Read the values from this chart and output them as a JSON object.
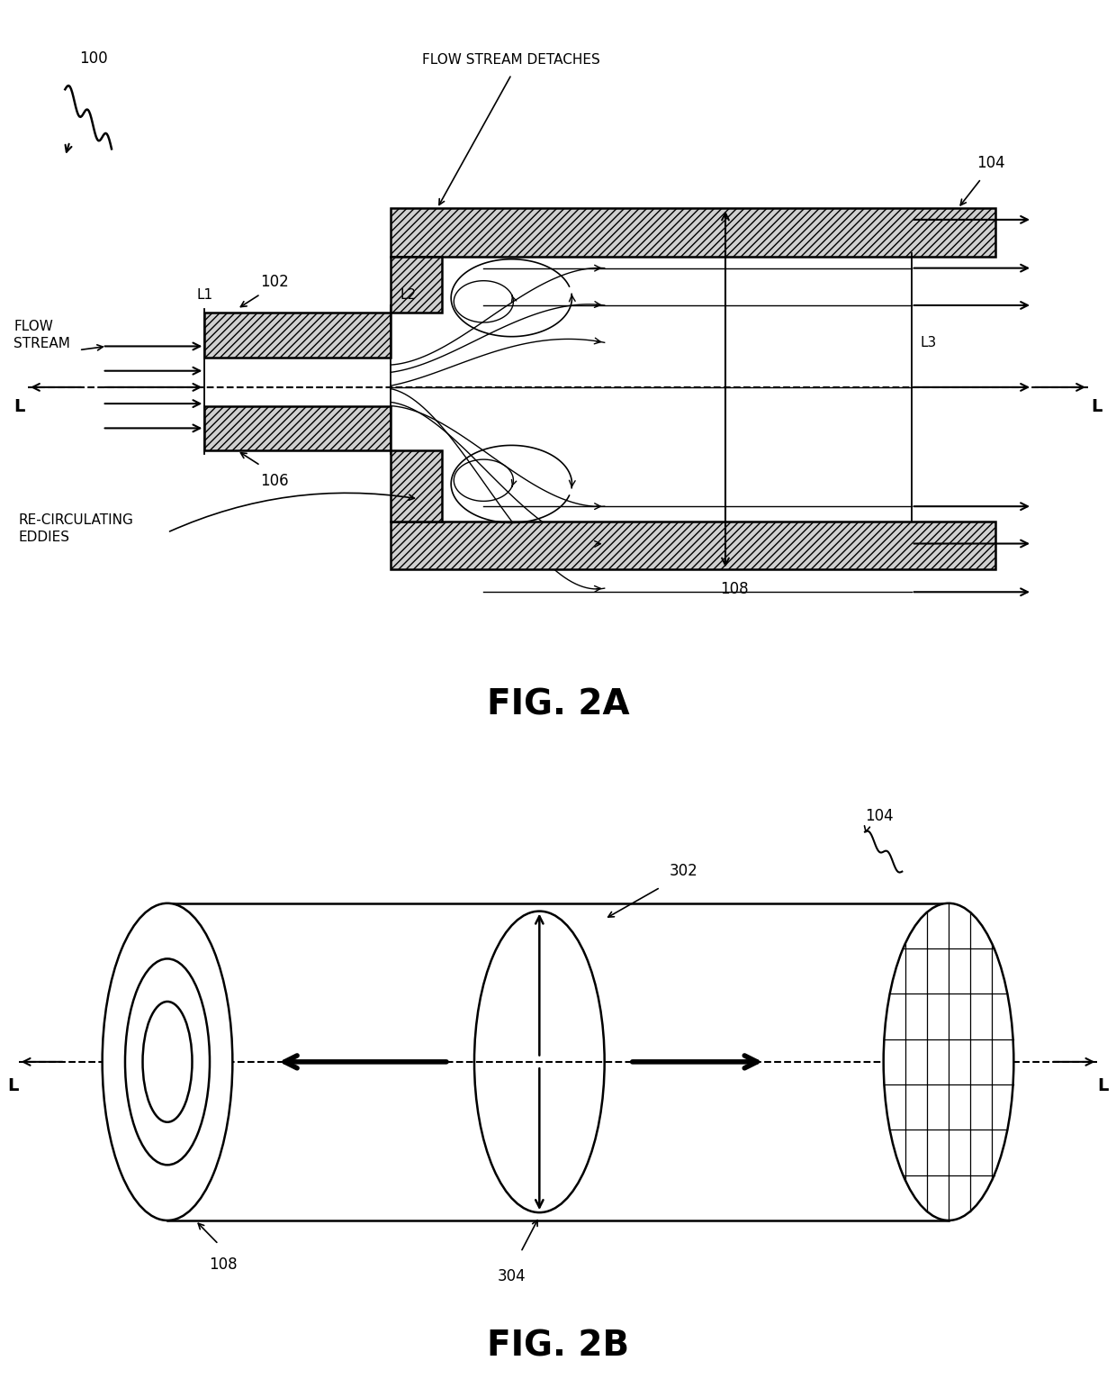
{
  "fig_title_a": "FIG. 2A",
  "fig_title_b": "FIG. 2B",
  "bg_color": "#ffffff",
  "hatch_fc": "#d0d0d0",
  "label_100": "100",
  "label_102": "102",
  "label_104": "104",
  "label_106": "106",
  "label_108": "108",
  "label_302": "302",
  "label_304": "304",
  "label_L": "L",
  "label_L1": "L1",
  "label_L2": "L2",
  "label_L3": "L3",
  "label_flow_stream": "FLOW\nSTREAM",
  "label_flow_detaches": "FLOW STREAM DETACHES",
  "label_recirc": "RE-CIRCULATING\nEDDIES"
}
